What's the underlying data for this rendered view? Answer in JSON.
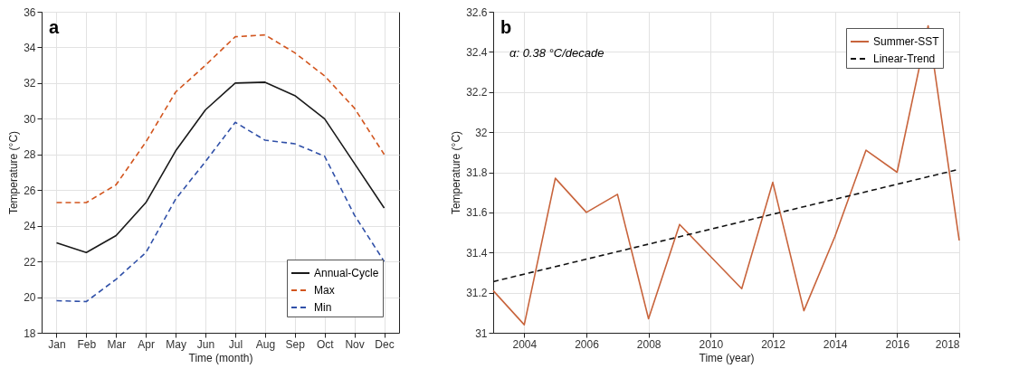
{
  "chart_data": [
    {
      "type": "line",
      "title": "a",
      "xlabel": "Time (month)",
      "ylabel": "Temperature (°C)",
      "categories": [
        "Jan",
        "Feb",
        "Mar",
        "Apr",
        "May",
        "Jun",
        "Jul",
        "Aug",
        "Sep",
        "Oct",
        "Nov",
        "Dec"
      ],
      "series": [
        {
          "name": "Annual-Cycle",
          "color": "#1a1a1a",
          "line_style": "solid",
          "values": [
            23.05,
            22.5,
            23.45,
            25.3,
            28.2,
            30.5,
            32.0,
            32.05,
            31.3,
            30.0,
            27.5,
            25.0
          ]
        },
        {
          "name": "Max",
          "color": "#d2551e",
          "line_style": "dashed",
          "values": [
            25.3,
            25.3,
            26.3,
            28.7,
            31.5,
            33.0,
            34.6,
            34.7,
            33.7,
            32.4,
            30.6,
            28.0
          ]
        },
        {
          "name": "Min",
          "color": "#3050a8",
          "line_style": "dashed",
          "values": [
            19.8,
            19.75,
            21.0,
            22.5,
            25.5,
            27.6,
            29.8,
            28.8,
            28.6,
            27.9,
            24.6,
            22.0
          ]
        }
      ],
      "ylim": [
        18,
        36
      ],
      "yticks": [
        18,
        20,
        22,
        24,
        26,
        28,
        30,
        32,
        34,
        36
      ],
      "grid": true,
      "legend": "bottom right"
    },
    {
      "type": "line",
      "title": "b",
      "xlabel": "Time (year)",
      "ylabel": "Temperature (°C)",
      "annotations": [
        "α: 0.38 °C/decade"
      ],
      "series": [
        {
          "name": "Summer-SST",
          "color": "#c8643c",
          "line_style": "solid",
          "x": [
            2003,
            2004,
            2005,
            2006,
            2007,
            2008,
            2009,
            2010,
            2011,
            2012,
            2013,
            2014,
            2015,
            2016,
            2017,
            2018
          ],
          "values": [
            31.21,
            31.04,
            31.77,
            31.6,
            31.69,
            31.07,
            31.54,
            31.38,
            31.22,
            31.75,
            31.11,
            31.48,
            31.91,
            31.8,
            32.53,
            31.46
          ]
        },
        {
          "name": "Linear-Trend",
          "color": "#111111",
          "line_style": "dashed",
          "x": [
            2003,
            2018
          ],
          "values": [
            31.255,
            31.815
          ]
        }
      ],
      "xlim": [
        2003,
        2018
      ],
      "xticks": [
        2004,
        2006,
        2008,
        2010,
        2012,
        2014,
        2016,
        2018
      ],
      "ylim": [
        31,
        32.6
      ],
      "yticks": [
        31,
        31.2,
        31.4,
        31.6,
        31.8,
        32,
        32.2,
        32.4,
        32.6
      ],
      "grid": true,
      "legend": "top right"
    }
  ]
}
